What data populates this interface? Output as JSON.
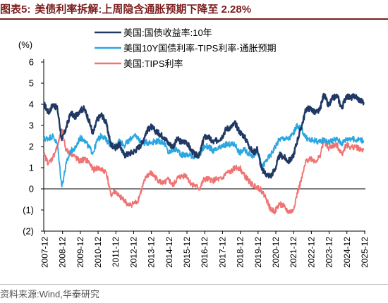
{
  "figure": {
    "label": "图表5:",
    "title": "美债利率拆解:上周隐含通胀预期下降至 2.28%"
  },
  "source": "资料来源:Wind,华泰研究",
  "chart_data": {
    "type": "line",
    "ylabel": "(%)",
    "ylim": [
      -2,
      6
    ],
    "yticks": [
      -2,
      -1,
      0,
      1,
      2,
      3,
      4,
      5,
      6
    ],
    "ytick_labels": [
      "(2)",
      "(1)",
      "0",
      "1",
      "2",
      "3",
      "4",
      "5",
      "6"
    ],
    "xlim": [
      2007.9,
      2026.0
    ],
    "xticks": [
      "2007-12",
      "2008-12",
      "2009-12",
      "2010-12",
      "2011-12",
      "2012-12",
      "2013-12",
      "2014-12",
      "2015-12",
      "2016-12",
      "2017-12",
      "2018-12",
      "2019-12",
      "2020-12",
      "2021-12",
      "2022-12",
      "2023-12",
      "2024-12",
      "2025-12"
    ],
    "grid": false,
    "legend": "top-center",
    "x": [
      2007.92,
      2008.17,
      2008.42,
      2008.67,
      2008.92,
      2009.17,
      2009.42,
      2009.67,
      2009.92,
      2010.17,
      2010.42,
      2010.67,
      2010.92,
      2011.17,
      2011.42,
      2011.67,
      2011.92,
      2012.17,
      2012.42,
      2012.67,
      2012.92,
      2013.17,
      2013.42,
      2013.67,
      2013.92,
      2014.17,
      2014.42,
      2014.67,
      2014.92,
      2015.17,
      2015.42,
      2015.67,
      2015.92,
      2016.17,
      2016.42,
      2016.67,
      2016.92,
      2017.17,
      2017.42,
      2017.67,
      2017.92,
      2018.17,
      2018.42,
      2018.67,
      2018.92,
      2019.17,
      2019.42,
      2019.67,
      2019.92,
      2020.17,
      2020.42,
      2020.67,
      2020.92,
      2021.17,
      2021.42,
      2021.67,
      2021.92,
      2022.17,
      2022.42,
      2022.67,
      2022.92,
      2023.17,
      2023.42,
      2023.67,
      2023.92,
      2024.17,
      2024.42,
      2024.67,
      2024.92,
      2025.17,
      2025.42,
      2025.67,
      2025.9
    ],
    "series": [
      {
        "name": "美国:国债收益率:10年",
        "color": "#1f3864",
        "values": [
          4.0,
          3.6,
          4.0,
          3.8,
          2.3,
          2.9,
          3.6,
          3.4,
          3.7,
          3.8,
          3.3,
          2.6,
          3.3,
          3.5,
          3.1,
          2.1,
          1.95,
          2.1,
          1.6,
          1.65,
          1.75,
          1.9,
          2.15,
          2.7,
          2.95,
          2.75,
          2.6,
          2.45,
          2.15,
          2.0,
          2.35,
          2.2,
          2.25,
          1.85,
          1.6,
          1.6,
          2.45,
          2.45,
          2.2,
          2.3,
          2.45,
          2.85,
          2.9,
          3.1,
          2.7,
          2.5,
          2.1,
          1.7,
          1.9,
          0.9,
          0.7,
          0.6,
          0.95,
          1.6,
          1.5,
          1.3,
          1.5,
          2.3,
          3.0,
          3.8,
          3.8,
          3.6,
          3.7,
          4.5,
          3.9,
          4.3,
          4.4,
          3.8,
          4.4,
          4.3,
          4.4,
          4.2,
          4.1
        ]
      },
      {
        "name": "美国10Y国债利率-TIPS利率-通胀预期",
        "color": "#2aa6e0",
        "values": [
          2.35,
          2.4,
          2.5,
          2.1,
          0.1,
          1.2,
          1.8,
          1.9,
          2.4,
          2.35,
          2.0,
          1.7,
          2.3,
          2.55,
          2.3,
          2.1,
          2.0,
          2.3,
          2.05,
          2.25,
          2.5,
          2.45,
          2.15,
          2.2,
          2.2,
          2.25,
          2.25,
          2.2,
          1.7,
          1.85,
          1.85,
          1.6,
          1.6,
          1.6,
          1.5,
          1.6,
          2.0,
          2.0,
          1.8,
          1.85,
          2.0,
          2.1,
          2.1,
          2.1,
          1.7,
          1.85,
          1.7,
          1.55,
          1.8,
          1.0,
          1.35,
          1.6,
          2.0,
          2.35,
          2.4,
          2.35,
          2.6,
          3.0,
          2.8,
          2.4,
          2.3,
          2.3,
          2.2,
          2.35,
          2.2,
          2.3,
          2.35,
          2.15,
          2.35,
          2.4,
          2.3,
          2.35,
          2.28
        ]
      },
      {
        "name": "美国:TIPS利率",
        "color": "#f07272",
        "values": [
          1.6,
          1.2,
          1.5,
          2.0,
          2.8,
          1.8,
          1.7,
          1.5,
          1.3,
          1.4,
          1.3,
          0.9,
          1.0,
          0.9,
          0.8,
          -0.3,
          -0.1,
          -0.4,
          -0.5,
          -0.8,
          -0.7,
          -0.6,
          0.0,
          0.6,
          0.75,
          0.55,
          0.35,
          0.25,
          0.45,
          0.15,
          0.5,
          0.6,
          0.65,
          0.25,
          0.15,
          0.0,
          0.45,
          0.45,
          0.4,
          0.45,
          0.45,
          0.75,
          0.8,
          1.0,
          1.0,
          0.65,
          0.4,
          0.15,
          0.1,
          -0.1,
          -0.45,
          -1.0,
          -1.05,
          -0.7,
          -0.85,
          -1.1,
          -1.05,
          -0.2,
          0.5,
          1.35,
          1.45,
          1.3,
          1.5,
          2.3,
          1.9,
          2.05,
          2.05,
          1.65,
          2.1,
          1.95,
          2.0,
          1.9,
          1.82
        ]
      }
    ]
  }
}
